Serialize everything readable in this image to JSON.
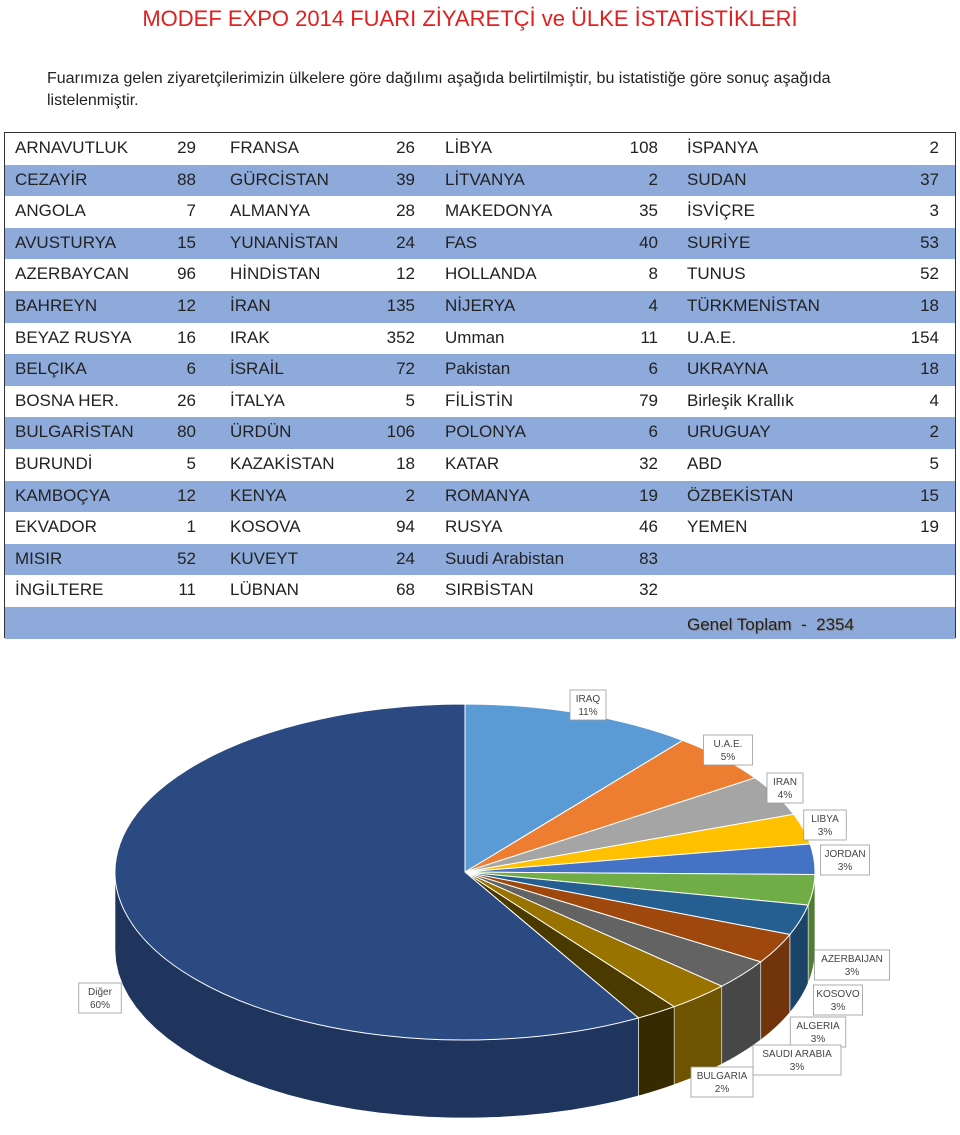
{
  "header": {
    "title": "MODEF EXPO 2014  FUARI ZİYARETÇİ ve ÜLKE İSTATİSTİKLERİ",
    "intro": "Fuarımıza gelen ziyaretçilerimizin ülkelere göre dağılımı aşağıda belirtilmiştir, bu istatistiğe göre sonuç aşağıda listelenmiştir."
  },
  "table": {
    "rows": [
      [
        "ARNAVUTLUK",
        29,
        "FRANSA",
        26,
        "LİBYA",
        108,
        "İSPANYA",
        2
      ],
      [
        "CEZAYİR",
        88,
        "GÜRCİSTAN",
        39,
        "LİTVANYA",
        2,
        "SUDAN",
        37
      ],
      [
        "ANGOLA",
        7,
        "ALMANYA",
        28,
        "MAKEDONYA",
        35,
        "İSVİÇRE",
        3
      ],
      [
        "AVUSTURYA",
        15,
        "YUNANİSTAN",
        24,
        "FAS",
        40,
        "SURİYE",
        53
      ],
      [
        "AZERBAYCAN",
        96,
        "HİNDİSTAN",
        12,
        "HOLLANDA",
        8,
        "TUNUS",
        52
      ],
      [
        "BAHREYN",
        12,
        "İRAN",
        135,
        "NİJERYA",
        4,
        "TÜRKMENİSTAN",
        18
      ],
      [
        "BEYAZ RUSYA",
        16,
        "IRAK",
        352,
        "Umman",
        11,
        "U.A.E.",
        154
      ],
      [
        "BELÇIKA",
        6,
        "İSRAİL",
        72,
        "Pakistan",
        6,
        "UKRAYNA",
        18
      ],
      [
        "BOSNA HER.",
        26,
        "İTALYA",
        5,
        "FİLİSTİN",
        79,
        "Birleşik Krallık",
        4
      ],
      [
        "BULGARİSTAN",
        80,
        "ÜRDÜN",
        106,
        "POLONYA",
        6,
        "URUGUAY",
        2
      ],
      [
        "BURUNDİ",
        5,
        "KAZAKİSTAN",
        18,
        "KATAR",
        32,
        "ABD",
        5
      ],
      [
        "KAMBOÇYA",
        12,
        "KENYA",
        2,
        "ROMANYA",
        19,
        "ÖZBEKİSTAN",
        15
      ],
      [
        "EKVADOR",
        1,
        "KOSOVA",
        94,
        "RUSYA",
        46,
        "YEMEN",
        19
      ],
      [
        "MISIR",
        52,
        "KUVEYT",
        24,
        "Suudi Arabistan",
        83,
        null,
        null
      ],
      [
        "İNGİLTERE",
        11,
        "LÜBNAN",
        68,
        "SIRBİSTAN",
        32,
        null,
        null
      ]
    ],
    "total": "Genel Toplam  -  2354"
  },
  "chart_data": {
    "type": "pie",
    "categories": [
      "IRAQ",
      "U.A.E.",
      "IRAN",
      "LIBYA",
      "JORDAN",
      null,
      "AZERBAIJAN",
      "KOSOVO",
      "ALGERIA",
      "SAUDI ARABIA",
      "BULGARIA",
      "Diğer"
    ],
    "values": [
      11,
      5,
      4,
      3,
      3,
      3,
      3,
      3,
      3,
      3,
      2,
      60
    ],
    "value_labels": [
      "11%",
      "5%",
      "4%",
      "3%",
      "3%",
      null,
      "3%",
      "3%",
      "3%",
      "3%",
      "2%",
      "60%"
    ],
    "colors": [
      "#5b9bd5",
      "#ed7d31",
      "#a5a5a5",
      "#ffc000",
      "#4472c4",
      "#70ad47",
      "#255e91",
      "#9e480e",
      "#636363",
      "#997300",
      "#4b3a00",
      "#2c4a82"
    ]
  }
}
